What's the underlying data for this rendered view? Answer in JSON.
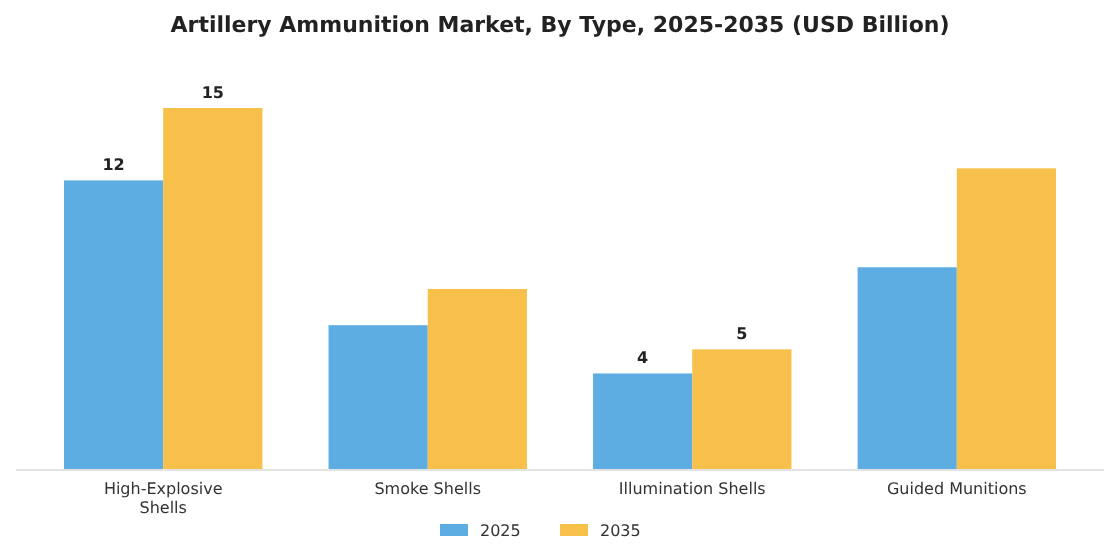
{
  "chart_data": {
    "type": "bar",
    "title": "Artillery Ammunition Market, By Type, 2025-2035 (USD Billion)",
    "categories": [
      "High-Explosive Shells",
      "Smoke Shells",
      "Illumination Shells",
      "Guided Munitions"
    ],
    "series": [
      {
        "name": "2025",
        "color": "#5dade2",
        "values": [
          12,
          6.0,
          4,
          8.4
        ],
        "value_labels": [
          "12",
          null,
          "4",
          null
        ]
      },
      {
        "name": "2035",
        "color": "#f7c04a",
        "values": [
          15,
          7.5,
          5,
          12.5
        ],
        "value_labels": [
          "15",
          null,
          "5",
          null
        ]
      }
    ],
    "legend": "bottom"
  }
}
